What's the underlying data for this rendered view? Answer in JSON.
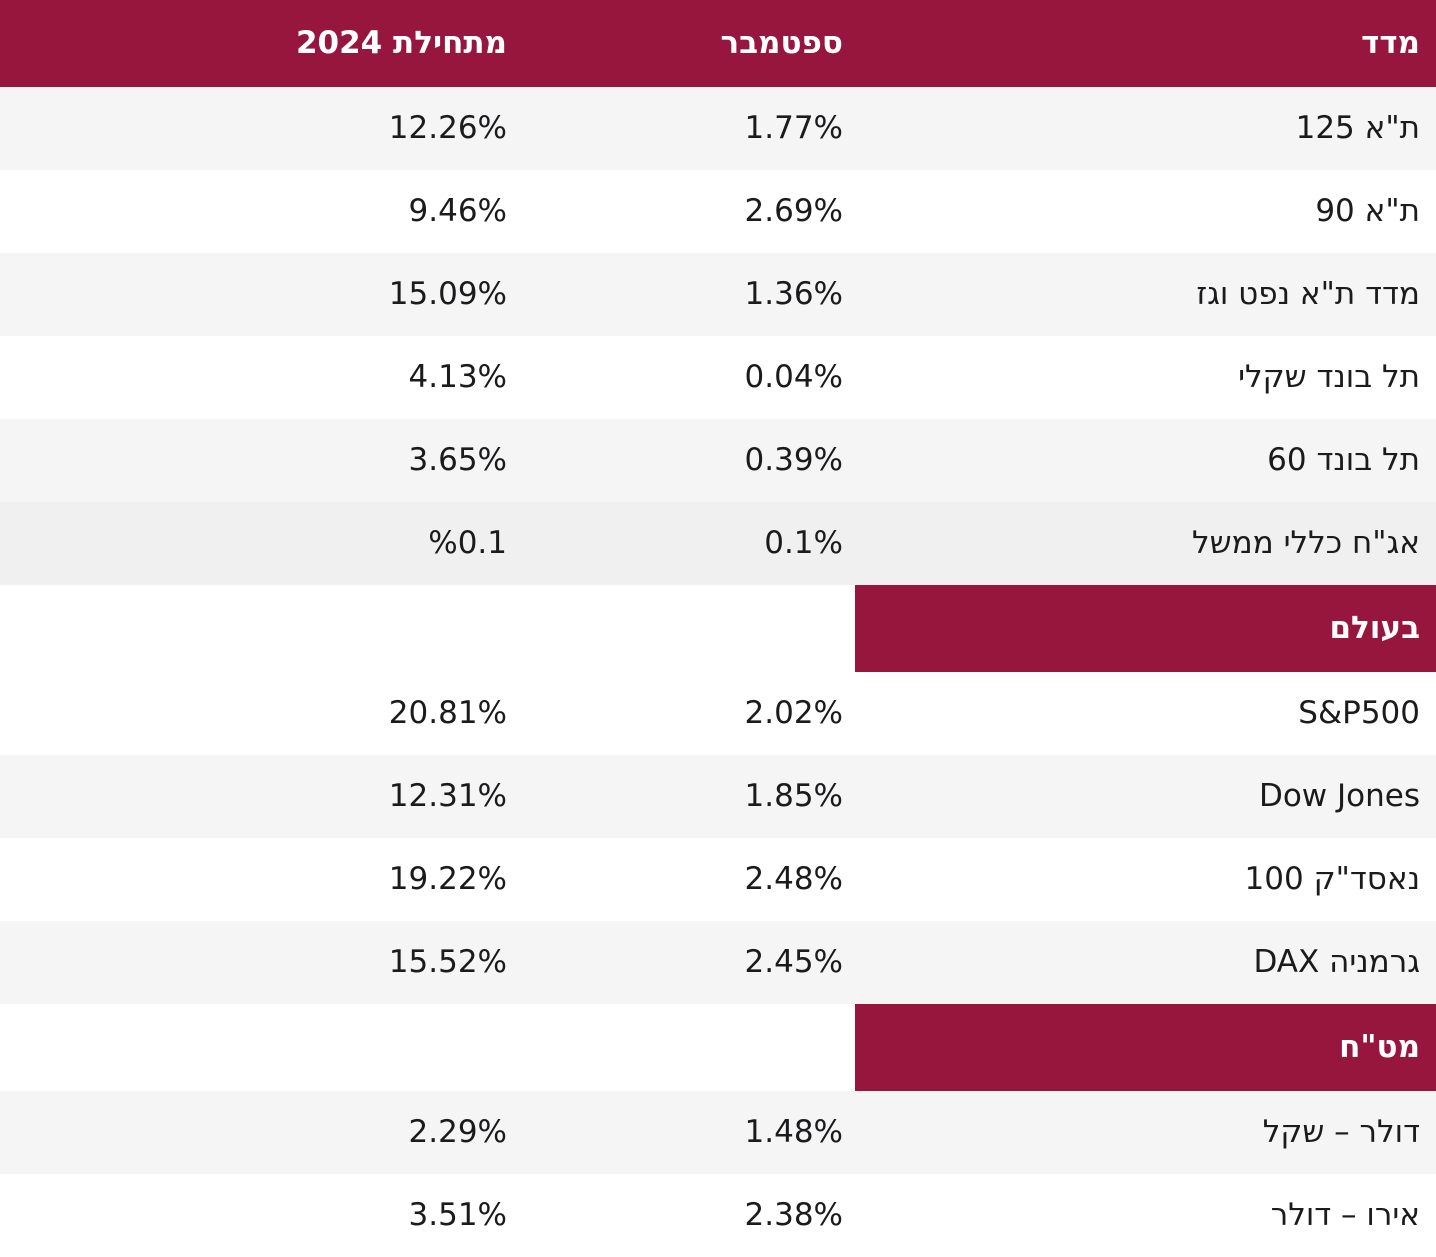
{
  "colors": {
    "accent": "#97163d",
    "header_text": "#ffffff",
    "row_text": "#1b1b1d",
    "row_alt": "#f5f5f6",
    "row_alt_dark": "#f0f0f1",
    "row_white": "#ffffff"
  },
  "chart_data": {
    "type": "table",
    "columns": [
      "מדד",
      "ספטמבר",
      "מתחילת 2024"
    ],
    "section_titles": [
      "בעולם",
      "מט\"ח"
    ],
    "rows": [
      {
        "name": "ת\"א 125",
        "september": "1.77%",
        "ytd": "12.26%"
      },
      {
        "name": "ת\"א 90",
        "september": "2.69%",
        "ytd": "9.46%"
      },
      {
        "name": "מדד ת\"א נפט וגז",
        "september": "1.36%",
        "ytd": "15.09%"
      },
      {
        "name": "תל בונד שקלי",
        "september": "0.04%",
        "ytd": "4.13%"
      },
      {
        "name": "תל בונד 60",
        "september": "0.39%",
        "ytd": "3.65%"
      },
      {
        "name": "אג\"ח כללי ממשל",
        "september": "0.1%",
        "ytd": "%0.1"
      },
      {
        "name": "S&P500",
        "september": "2.02%",
        "ytd": "20.81%"
      },
      {
        "name": "Dow Jones",
        "september": "1.85%",
        "ytd": "12.31%"
      },
      {
        "name": "נאסד\"ק 100",
        "september": "2.48%",
        "ytd": "19.22%"
      },
      {
        "name": "גרמניה DAX",
        "september": "2.45%",
        "ytd": "15.52%"
      },
      {
        "name": "דולר – שקל",
        "september": "1.48%",
        "ytd": "2.29%"
      },
      {
        "name": "אירו – דולר",
        "september": "2.38%",
        "ytd": "3.51%"
      }
    ]
  }
}
